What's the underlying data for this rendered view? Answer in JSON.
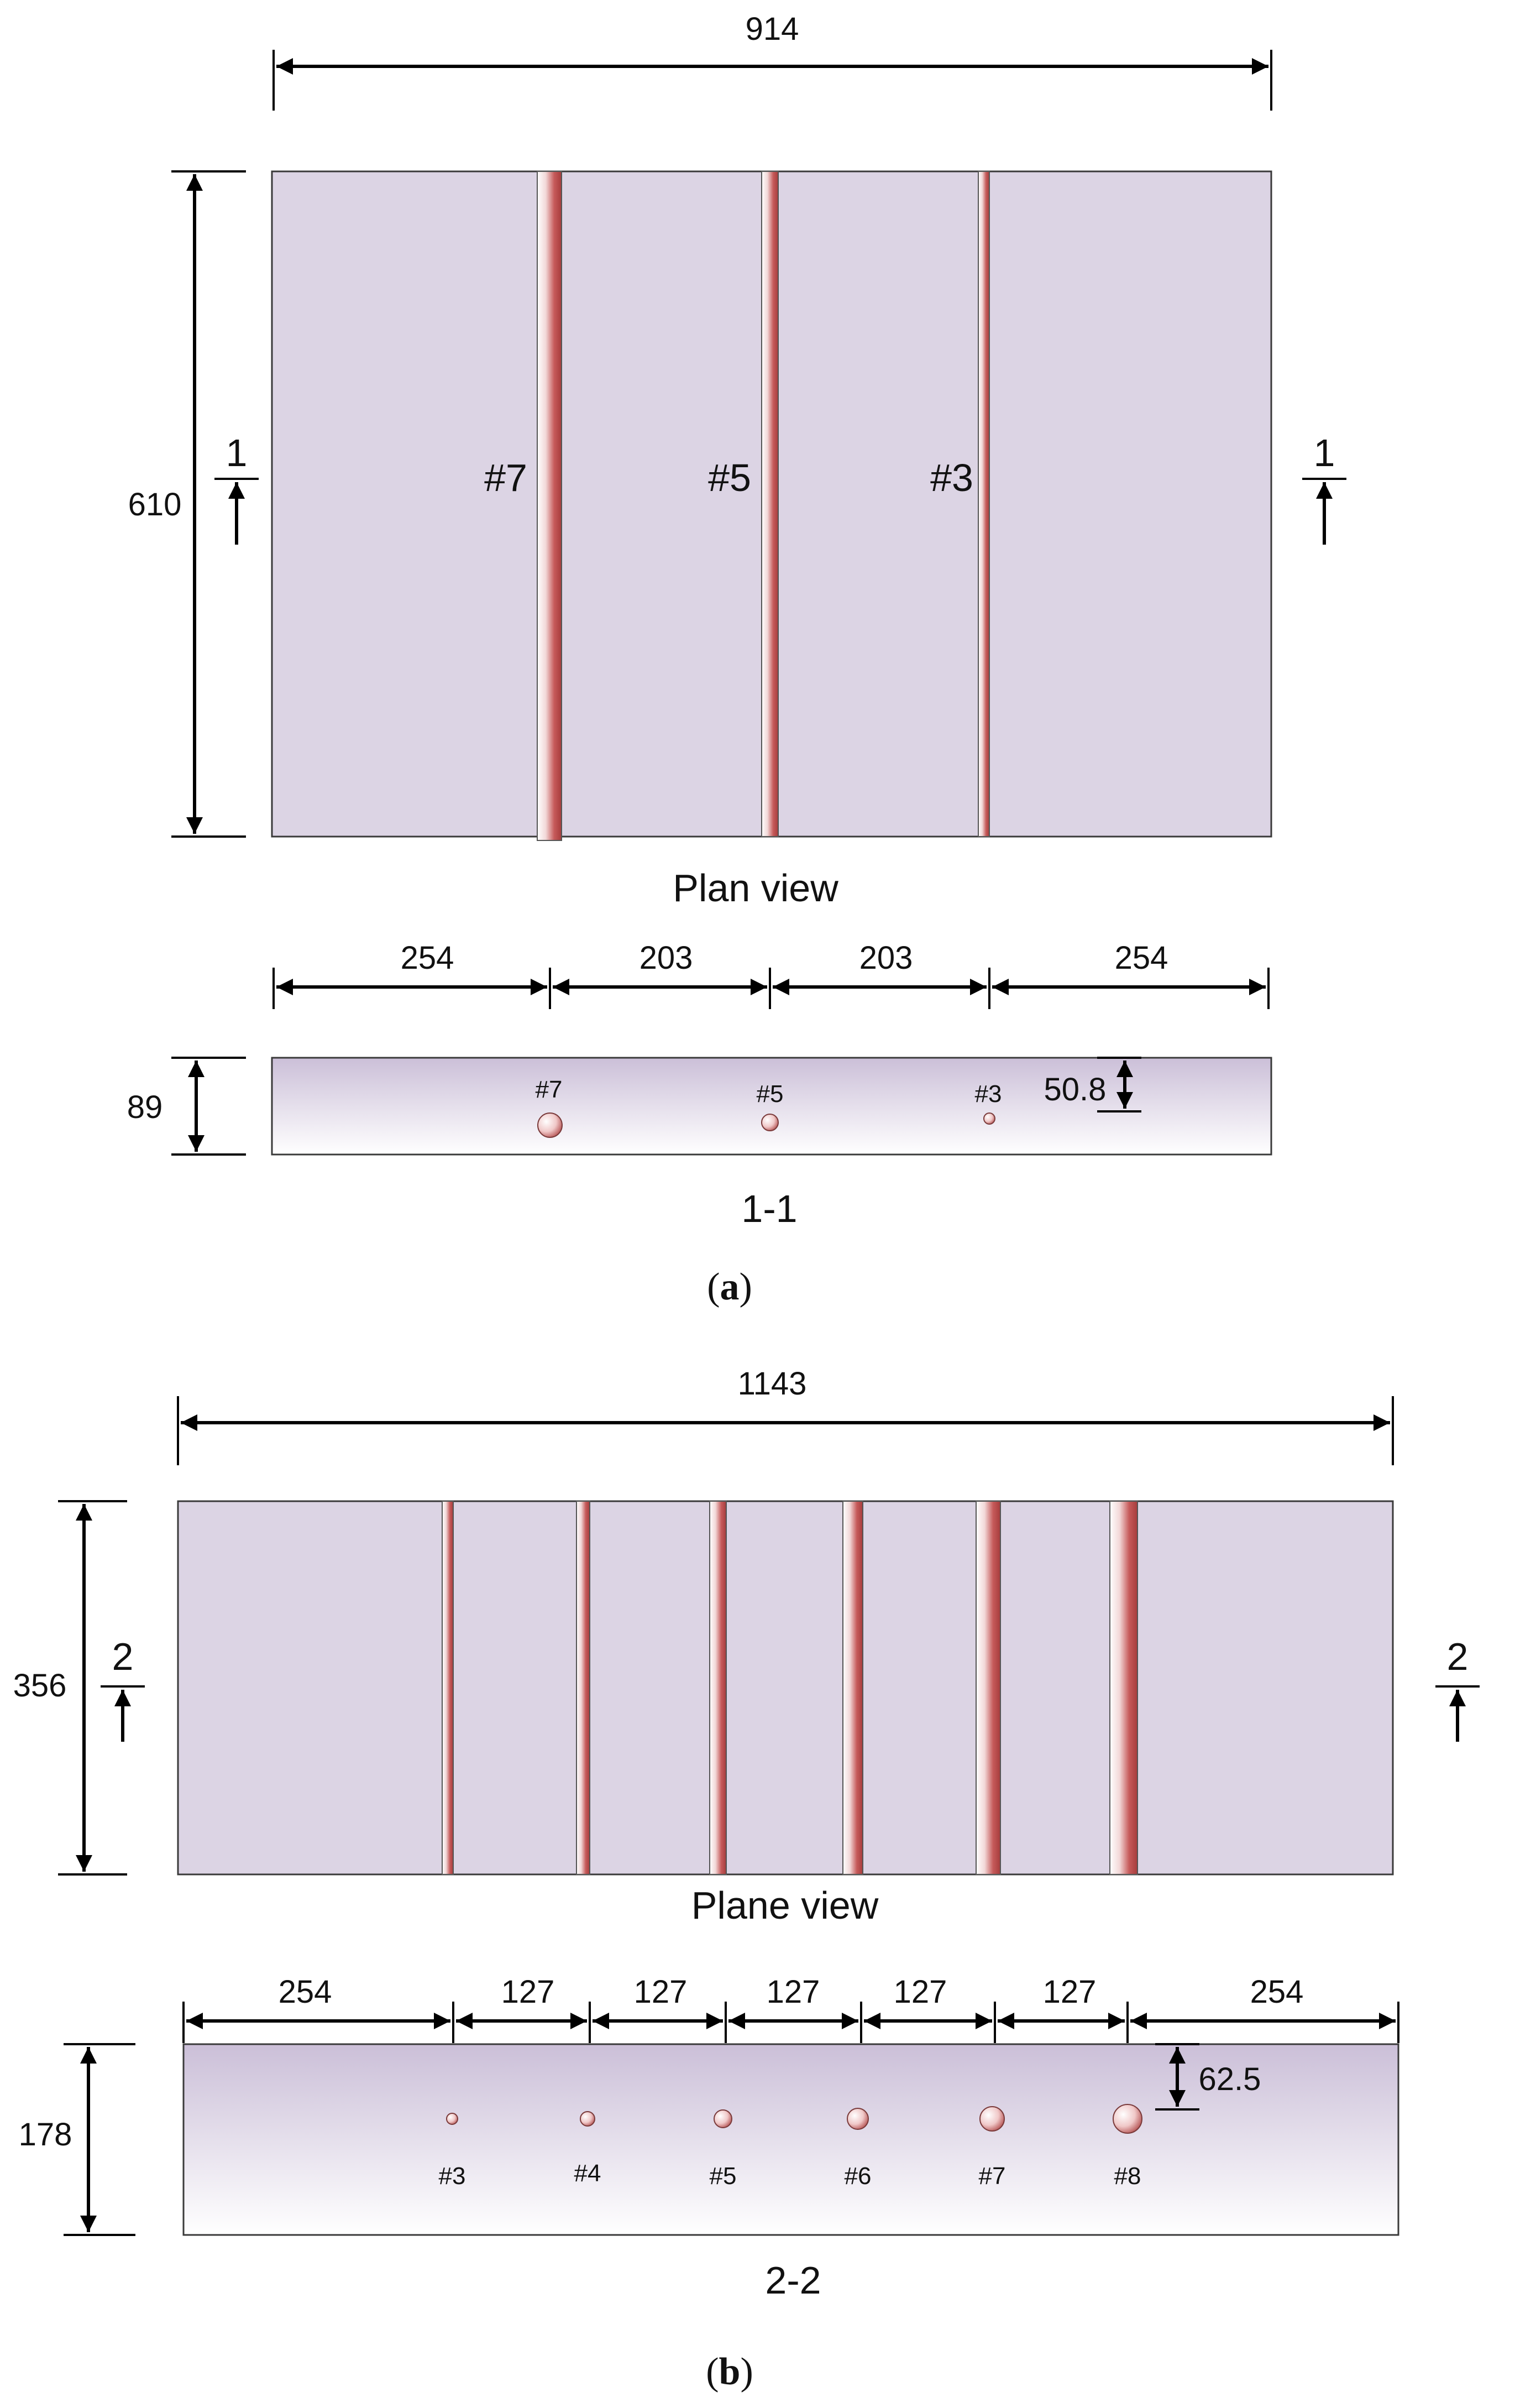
{
  "figure_a": {
    "overall_width_label": "914",
    "slab_height_label": "610",
    "section_marker_label": "1",
    "bar_labels": [
      "#7",
      "#5",
      "#3"
    ],
    "plan_caption": "Plan view",
    "spacing_labels": [
      "254",
      "203",
      "203",
      "254"
    ],
    "section_depth_label": "89",
    "section_bar_labels": [
      "#7",
      "#5",
      "#3"
    ],
    "cover_label": "50.8",
    "section_caption": "1-1",
    "panel_open": "(",
    "panel_letter": "a",
    "panel_close": ")"
  },
  "figure_b": {
    "overall_width_label": "1143",
    "slab_height_label": "356",
    "section_marker_label": "2",
    "plan_caption": "Plane view",
    "spacing_labels": [
      "254",
      "127",
      "127",
      "127",
      "127",
      "127",
      "254"
    ],
    "section_depth_label": "178",
    "section_bar_labels": [
      "#3",
      "#4",
      "#5",
      "#6",
      "#7",
      "#8"
    ],
    "cover_label": "62.5",
    "section_caption": "2-2",
    "panel_open": "(",
    "panel_letter": "b",
    "panel_close": ")"
  },
  "colors": {
    "slab_fill": "#dcd4e4",
    "bar_dark": "#b84a4a",
    "bar_light": "#ffffff",
    "section_top": "#cbbfd8",
    "section_bottom": "#ffffff"
  }
}
